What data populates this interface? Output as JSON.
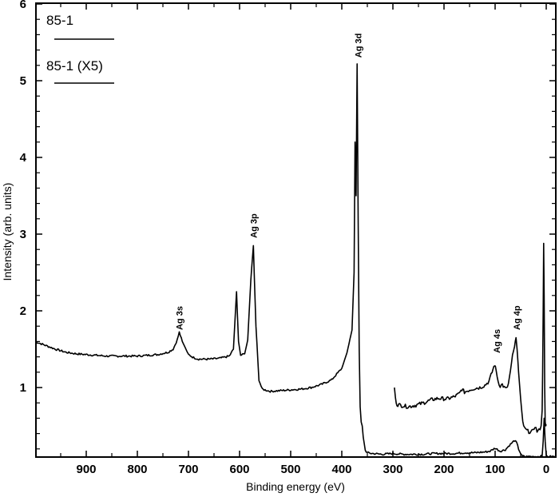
{
  "chart_data": {
    "type": "line",
    "title": "",
    "xlabel": "Binding energy (eV)",
    "ylabel": "Intensity (arb. units)",
    "xlim": [
      1000,
      -18
    ],
    "ylim": [
      0.09,
      6
    ],
    "x_reversed": true,
    "grid": false,
    "legend_position": "upper-left",
    "x_ticks": [
      900,
      800,
      700,
      600,
      500,
      400,
      300,
      200,
      100,
      0
    ],
    "y_ticks": [
      1,
      2,
      3,
      4,
      5,
      6
    ],
    "legend": [
      {
        "label": "85-1"
      },
      {
        "label": "85-1 (X5)"
      }
    ],
    "annotations": [
      {
        "text": "Ag 3s",
        "x": 718,
        "y": 1.75
      },
      {
        "text": "Ag 3p",
        "x": 573,
        "y": 2.95
      },
      {
        "text": "Ag 3d",
        "x": 368,
        "y": 5.3
      },
      {
        "text": "Ag 4s",
        "x": 97,
        "y": 1.45
      },
      {
        "text": "Ag 4p",
        "x": 58,
        "y": 1.75
      }
    ],
    "series": [
      {
        "name": "85-1",
        "x": [
          1000,
          980,
          960,
          940,
          920,
          900,
          880,
          860,
          840,
          820,
          800,
          780,
          760,
          740,
          730,
          722,
          718,
          712,
          700,
          690,
          680,
          660,
          640,
          620,
          612,
          606,
          602,
          598,
          590,
          584,
          578,
          573,
          568,
          562,
          556,
          540,
          520,
          500,
          480,
          460,
          440,
          420,
          400,
          390,
          380,
          376,
          374,
          372,
          370,
          368,
          366,
          364,
          362,
          360,
          358,
          354,
          350,
          340,
          320,
          300,
          280,
          260,
          240,
          220,
          200,
          180,
          160,
          140,
          120,
          110,
          100,
          90,
          80,
          70,
          62,
          58,
          54,
          48,
          42,
          36,
          30,
          24,
          18,
          12,
          8,
          6,
          4,
          2,
          0,
          -2,
          -6,
          -10,
          -14,
          -18
        ],
        "y": [
          1.6,
          1.55,
          1.5,
          1.46,
          1.44,
          1.43,
          1.42,
          1.41,
          1.41,
          1.41,
          1.41,
          1.42,
          1.43,
          1.46,
          1.5,
          1.62,
          1.72,
          1.6,
          1.43,
          1.39,
          1.37,
          1.37,
          1.38,
          1.41,
          1.5,
          2.25,
          1.6,
          1.42,
          1.44,
          1.62,
          2.4,
          2.85,
          1.8,
          1.1,
          0.98,
          0.95,
          0.96,
          0.97,
          0.98,
          1.0,
          1.04,
          1.1,
          1.25,
          1.45,
          1.75,
          2.5,
          4.2,
          3.5,
          5.22,
          3.2,
          1.5,
          0.75,
          0.55,
          0.5,
          0.35,
          0.18,
          0.15,
          0.14,
          0.13,
          0.14,
          0.13,
          0.13,
          0.13,
          0.14,
          0.14,
          0.14,
          0.15,
          0.15,
          0.16,
          0.17,
          0.21,
          0.17,
          0.19,
          0.26,
          0.31,
          0.28,
          0.2,
          0.11,
          0.1,
          0.1,
          0.1,
          0.1,
          0.1,
          0.1,
          0.11,
          0.3,
          0.6,
          0.3,
          0.12,
          0.1,
          0.1,
          0.1,
          0.1,
          0.1
        ]
      },
      {
        "name": "85-1 (X5)",
        "x": [
          297,
          295,
          292,
          285,
          270,
          255,
          240,
          225,
          210,
          195,
          180,
          170,
          165,
          160,
          150,
          140,
          130,
          120,
          112,
          106,
          101,
          98,
          94,
          90,
          86,
          82,
          78,
          74,
          70,
          66,
          62,
          59,
          57,
          54,
          50,
          46,
          42,
          36,
          30,
          26,
          22,
          18,
          14,
          10,
          8,
          7,
          6,
          5,
          4,
          3,
          2,
          1,
          0
        ],
        "y": [
          1.0,
          0.85,
          0.78,
          0.77,
          0.75,
          0.77,
          0.8,
          0.84,
          0.86,
          0.85,
          0.88,
          0.92,
          0.98,
          0.94,
          0.97,
          0.99,
          1.0,
          1.03,
          1.08,
          1.2,
          1.3,
          1.22,
          1.08,
          1.02,
          1.04,
          1.0,
          0.98,
          1.05,
          1.22,
          1.42,
          1.52,
          1.65,
          1.5,
          1.2,
          0.85,
          0.55,
          0.46,
          0.43,
          0.42,
          0.43,
          0.5,
          0.43,
          0.44,
          0.5,
          0.7,
          1.2,
          2.0,
          2.88,
          2.2,
          1.0,
          0.55,
          0.5,
          0.52
        ]
      }
    ]
  }
}
